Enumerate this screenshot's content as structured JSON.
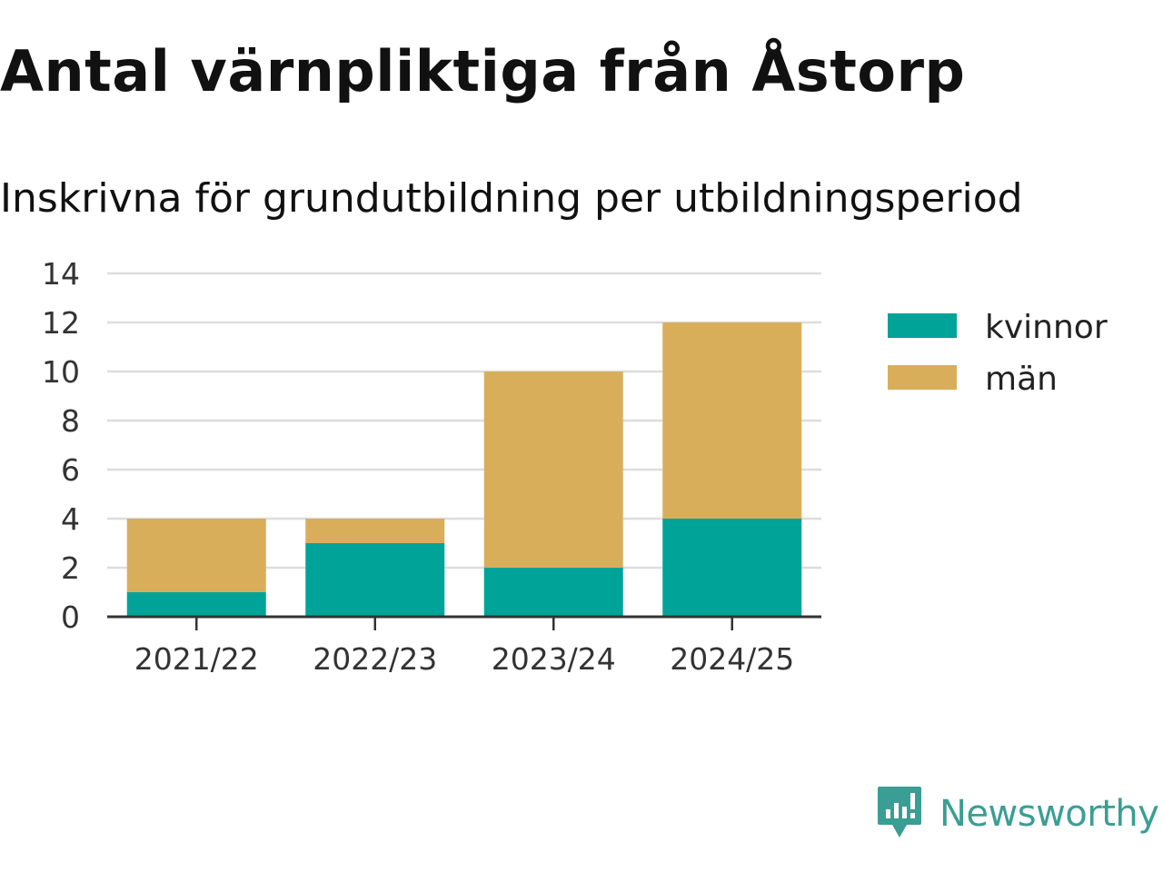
{
  "title": "Antal värnpliktiga från Åstorp",
  "subtitle": "Inskrivna för grundutbildning per utbildningsperiod",
  "colors": {
    "kvinnor": "#00a398",
    "man": "#d9ae5b",
    "grid": "#dddddd",
    "axis": "#333333",
    "brand": "#3a9e94"
  },
  "logo": {
    "name": "Newsworthy",
    "icon": "newsworthy-logo-icon"
  },
  "chart_data": {
    "type": "bar",
    "stacked": true,
    "categories": [
      "2021/22",
      "2022/23",
      "2023/24",
      "2024/25"
    ],
    "series": [
      {
        "name": "kvinnor",
        "values": [
          1,
          3,
          2,
          4
        ]
      },
      {
        "name": "män",
        "values": [
          3,
          1,
          8,
          8
        ]
      }
    ],
    "yticks": [
      "0",
      "2",
      "4",
      "6",
      "8",
      "10",
      "12",
      "14"
    ],
    "ylim": [
      0,
      14
    ],
    "grid": true,
    "legend_position": "right",
    "title": "Antal värnpliktiga från Åstorp",
    "subtitle": "Inskrivna för grundutbildning per utbildningsperiod"
  }
}
